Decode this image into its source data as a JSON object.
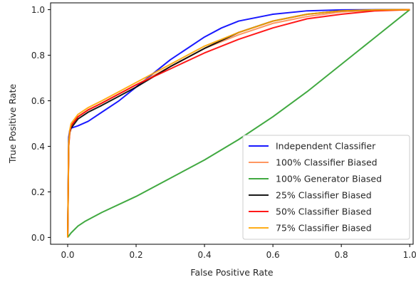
{
  "chart_data": {
    "type": "line",
    "title": "",
    "xlabel": "False Positive Rate",
    "ylabel": "True Positive Rate",
    "xlim": [
      -0.05,
      1.01
    ],
    "ylim": [
      -0.03,
      1.03
    ],
    "xticks": [
      0.0,
      0.2,
      0.4,
      0.6,
      0.8,
      1.0
    ],
    "xtick_labels": [
      "0.0",
      "0.2",
      "0.4",
      "0.6",
      "0.8",
      "1.0"
    ],
    "yticks": [
      0.0,
      0.2,
      0.4,
      0.6,
      0.8,
      1.0
    ],
    "ytick_labels": [
      "0.0",
      "0.2",
      "0.4",
      "0.6",
      "0.8",
      "1.0"
    ],
    "grid": false,
    "legend_position": "lower-right",
    "series": [
      {
        "name": "Independent Classifier",
        "color": "#0000ff",
        "x": [
          0.0,
          0.003,
          0.006,
          0.01,
          0.03,
          0.06,
          0.1,
          0.15,
          0.2,
          0.3,
          0.4,
          0.45,
          0.5,
          0.6,
          0.7,
          0.8,
          0.9,
          1.0
        ],
        "y": [
          0.0,
          0.44,
          0.47,
          0.48,
          0.49,
          0.51,
          0.55,
          0.6,
          0.66,
          0.78,
          0.88,
          0.92,
          0.95,
          0.98,
          0.995,
          0.999,
          1.0,
          1.0
        ]
      },
      {
        "name": "100% Classifier Biased",
        "color": "#ff8c50",
        "x": [
          0.0,
          0.003,
          0.006,
          0.01,
          0.03,
          0.06,
          0.1,
          0.15,
          0.2,
          0.3,
          0.4,
          0.5,
          0.6,
          0.7,
          0.8,
          0.9,
          1.0
        ],
        "y": [
          0.0,
          0.4,
          0.46,
          0.49,
          0.53,
          0.56,
          0.59,
          0.63,
          0.67,
          0.75,
          0.83,
          0.89,
          0.94,
          0.97,
          0.99,
          0.998,
          1.0
        ]
      },
      {
        "name": "100% Generator Biased",
        "color": "#2ca02c",
        "x": [
          0.0,
          0.01,
          0.03,
          0.05,
          0.1,
          0.2,
          0.3,
          0.4,
          0.5,
          0.6,
          0.7,
          0.8,
          0.9,
          1.0
        ],
        "y": [
          0.0,
          0.02,
          0.05,
          0.07,
          0.11,
          0.18,
          0.26,
          0.34,
          0.43,
          0.53,
          0.64,
          0.76,
          0.88,
          1.0
        ]
      },
      {
        "name": "25% Classifier Biased",
        "color": "#000000",
        "x": [
          0.0,
          0.003,
          0.006,
          0.01,
          0.03,
          0.06,
          0.1,
          0.15,
          0.2,
          0.3,
          0.4,
          0.5,
          0.6,
          0.7,
          0.8,
          0.9,
          1.0
        ],
        "y": [
          0.0,
          0.42,
          0.46,
          0.48,
          0.52,
          0.55,
          0.58,
          0.62,
          0.66,
          0.75,
          0.83,
          0.9,
          0.95,
          0.98,
          0.995,
          0.999,
          1.0
        ]
      },
      {
        "name": "50% Classifier Biased",
        "color": "#ff0000",
        "x": [
          0.0,
          0.003,
          0.006,
          0.01,
          0.03,
          0.06,
          0.1,
          0.15,
          0.2,
          0.3,
          0.4,
          0.5,
          0.6,
          0.7,
          0.8,
          0.9,
          1.0
        ],
        "y": [
          0.0,
          0.4,
          0.46,
          0.49,
          0.53,
          0.56,
          0.59,
          0.63,
          0.67,
          0.74,
          0.81,
          0.87,
          0.92,
          0.96,
          0.98,
          0.995,
          1.0
        ]
      },
      {
        "name": "75% Classifier Biased",
        "color": "#ffa500",
        "x": [
          0.0,
          0.003,
          0.006,
          0.01,
          0.03,
          0.06,
          0.1,
          0.15,
          0.2,
          0.3,
          0.4,
          0.5,
          0.6,
          0.7,
          0.8,
          0.9,
          1.0
        ],
        "y": [
          0.0,
          0.41,
          0.47,
          0.5,
          0.54,
          0.57,
          0.6,
          0.64,
          0.68,
          0.76,
          0.84,
          0.9,
          0.95,
          0.98,
          0.995,
          0.999,
          1.0
        ]
      }
    ]
  }
}
